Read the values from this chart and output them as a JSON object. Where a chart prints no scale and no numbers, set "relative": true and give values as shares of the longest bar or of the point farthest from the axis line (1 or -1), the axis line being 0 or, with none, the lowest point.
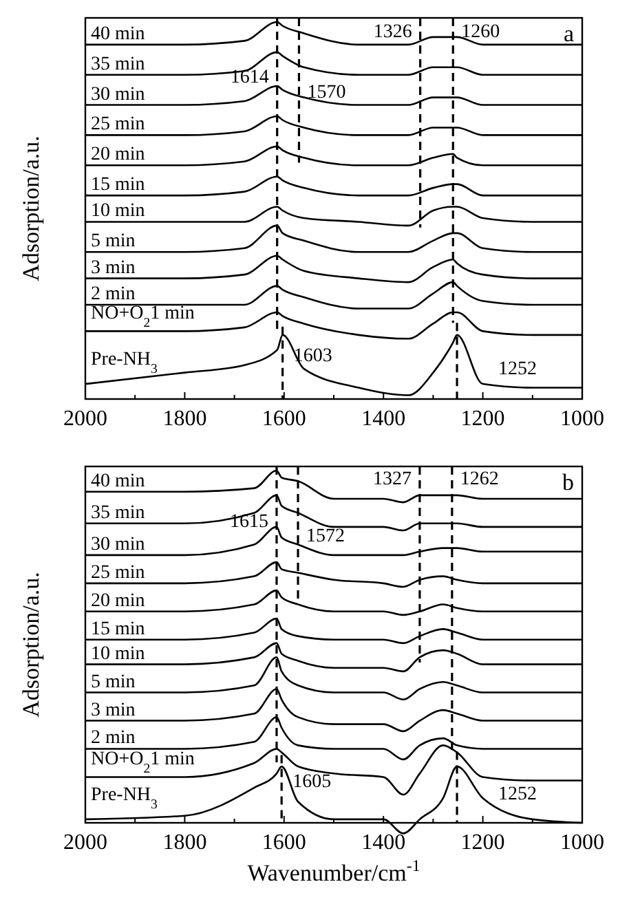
{
  "chart_data": [
    {
      "type": "line",
      "relative": true,
      "ylabel": "Adsorption/a.u.",
      "annotations": [
        "a"
      ],
      "legend": false,
      "grid": false,
      "line_style": "solid",
      "marker": "none",
      "x": [
        2000,
        1800,
        1680,
        1614,
        1603,
        1560,
        1450,
        1350,
        1300,
        1260,
        1252,
        1200,
        1100,
        1000
      ],
      "xlim": [
        2000,
        1000
      ],
      "xticks": [
        2000,
        {
          "value": 1900,
          "label": null
        },
        1800,
        {
          "value": 1700,
          "label": null
        },
        1600,
        {
          "value": 1500,
          "label": null
        },
        1400,
        {
          "value": 1300,
          "label": null
        },
        1200,
        {
          "value": 1100,
          "label": null
        },
        1000
      ],
      "ref_lines": [
        {
          "axis": "x",
          "value": 1614,
          "label": "1614",
          "line_style": "dashed"
        },
        {
          "axis": "x",
          "value": 1570,
          "label": "1570",
          "line_style": "dashed"
        },
        {
          "axis": "x",
          "value": 1326,
          "label": "1326",
          "line_style": "dashed"
        },
        {
          "axis": "x",
          "value": 1260,
          "label": "1260",
          "line_style": "dashed"
        },
        {
          "axis": "x",
          "value": 1603,
          "label": "1603",
          "line_style": "dashed"
        },
        {
          "axis": "x",
          "value": 1252,
          "label": "1252",
          "line_style": "dashed"
        }
      ],
      "series": [
        {
          "name": "40 min",
          "color": "#000000",
          "values": [
            0.94,
            0.94,
            0.95,
            1.0,
            0.99,
            0.97,
            0.94,
            0.94,
            0.96,
            0.96,
            0.96,
            0.94,
            0.94,
            0.94
          ]
        },
        {
          "name": "35 min",
          "color": "#000000",
          "values": [
            0.86,
            0.86,
            0.87,
            0.92,
            0.91,
            0.88,
            0.86,
            0.86,
            0.88,
            0.88,
            0.88,
            0.86,
            0.86,
            0.86
          ]
        },
        {
          "name": "30 min",
          "color": "#000000",
          "values": [
            0.78,
            0.78,
            0.79,
            0.83,
            0.82,
            0.8,
            0.78,
            0.78,
            0.8,
            0.8,
            0.8,
            0.78,
            0.78,
            0.78
          ]
        },
        {
          "name": "25 min",
          "color": "#000000",
          "values": [
            0.7,
            0.7,
            0.71,
            0.75,
            0.74,
            0.72,
            0.7,
            0.7,
            0.72,
            0.72,
            0.72,
            0.7,
            0.7,
            0.7
          ]
        },
        {
          "name": "20 min",
          "color": "#000000",
          "values": [
            0.62,
            0.62,
            0.63,
            0.67,
            0.66,
            0.64,
            0.62,
            0.62,
            0.64,
            0.65,
            0.64,
            0.62,
            0.62,
            0.62
          ]
        },
        {
          "name": "15 min",
          "color": "#000000",
          "values": [
            0.54,
            0.54,
            0.55,
            0.59,
            0.58,
            0.56,
            0.54,
            0.54,
            0.56,
            0.57,
            0.57,
            0.54,
            0.54,
            0.54
          ]
        },
        {
          "name": "10 min",
          "color": "#000000",
          "values": [
            0.47,
            0.47,
            0.47,
            0.51,
            0.5,
            0.48,
            0.47,
            0.46,
            0.5,
            0.51,
            0.51,
            0.48,
            0.47,
            0.47
          ]
        },
        {
          "name": "5 min",
          "color": "#000000",
          "values": [
            0.39,
            0.39,
            0.4,
            0.46,
            0.44,
            0.42,
            0.39,
            0.39,
            0.42,
            0.44,
            0.44,
            0.4,
            0.39,
            0.39
          ]
        },
        {
          "name": "3 min",
          "color": "#000000",
          "values": [
            0.32,
            0.32,
            0.33,
            0.38,
            0.37,
            0.34,
            0.32,
            0.31,
            0.35,
            0.37,
            0.36,
            0.33,
            0.32,
            0.32
          ]
        },
        {
          "name": "2 min",
          "color": "#000000",
          "values": [
            0.25,
            0.25,
            0.25,
            0.3,
            0.29,
            0.27,
            0.24,
            0.24,
            0.28,
            0.31,
            0.3,
            0.26,
            0.25,
            0.25
          ]
        },
        {
          "name": "NO+O$_{2}$1 min",
          "color": "#000000",
          "values": [
            0.18,
            0.18,
            0.19,
            0.23,
            0.22,
            0.2,
            0.17,
            0.16,
            0.2,
            0.23,
            0.23,
            0.18,
            0.17,
            0.17
          ]
        },
        {
          "name": "Pre-NH$_{3}$",
          "color": "#000000",
          "values": [
            0.04,
            0.07,
            0.09,
            0.13,
            0.17,
            0.08,
            0.03,
            0.01,
            0.07,
            0.15,
            0.17,
            0.04,
            0.03,
            0.03
          ]
        }
      ]
    },
    {
      "type": "line",
      "relative": true,
      "ylabel": "Adsorption/a.u.",
      "xlabel": "Wavenumber/cm$^{-1}$",
      "annotations": [
        "b"
      ],
      "legend": false,
      "grid": false,
      "line_style": "solid",
      "marker": "none",
      "x": [
        2000,
        1800,
        1660,
        1615,
        1605,
        1572,
        1500,
        1400,
        1360,
        1327,
        1280,
        1252,
        1200,
        1100,
        1000
      ],
      "xlim": [
        2000,
        1000
      ],
      "xticks": [
        2000,
        {
          "value": 1900,
          "label": null
        },
        1800,
        {
          "value": 1700,
          "label": null
        },
        1600,
        {
          "value": 1500,
          "label": null
        },
        1400,
        {
          "value": 1300,
          "label": null
        },
        1200,
        {
          "value": 1100,
          "label": null
        },
        1000
      ],
      "ref_lines": [
        {
          "axis": "x",
          "value": 1615,
          "label": "1615",
          "line_style": "dashed"
        },
        {
          "axis": "x",
          "value": 1572,
          "label": "1572",
          "line_style": "dashed"
        },
        {
          "axis": "x",
          "value": 1327,
          "label": "1327",
          "line_style": "dashed"
        },
        {
          "axis": "x",
          "value": 1262,
          "label": "1262",
          "line_style": "dashed"
        },
        {
          "axis": "x",
          "value": 1605,
          "label": "1605",
          "line_style": "dashed"
        },
        {
          "axis": "x",
          "value": 1252,
          "label": "1252",
          "line_style": "dashed"
        }
      ],
      "series": [
        {
          "name": "40 min",
          "color": "#000000",
          "values": [
            0.94,
            0.94,
            0.95,
            1.0,
            0.98,
            0.97,
            0.92,
            0.92,
            0.91,
            0.93,
            0.93,
            0.93,
            0.92,
            0.92,
            0.92
          ]
        },
        {
          "name": "35 min",
          "color": "#000000",
          "values": [
            0.85,
            0.85,
            0.88,
            0.93,
            0.9,
            0.88,
            0.84,
            0.84,
            0.83,
            0.85,
            0.85,
            0.85,
            0.84,
            0.84,
            0.84
          ]
        },
        {
          "name": "30 min",
          "color": "#000000",
          "values": [
            0.76,
            0.76,
            0.79,
            0.84,
            0.81,
            0.79,
            0.76,
            0.76,
            0.76,
            0.77,
            0.78,
            0.78,
            0.77,
            0.77,
            0.77
          ]
        },
        {
          "name": "25 min",
          "color": "#000000",
          "values": [
            0.68,
            0.68,
            0.7,
            0.74,
            0.72,
            0.71,
            0.69,
            0.68,
            0.67,
            0.69,
            0.7,
            0.69,
            0.68,
            0.68,
            0.68
          ]
        },
        {
          "name": "20 min",
          "color": "#000000",
          "values": [
            0.6,
            0.6,
            0.62,
            0.66,
            0.64,
            0.62,
            0.6,
            0.6,
            0.59,
            0.6,
            0.62,
            0.61,
            0.6,
            0.6,
            0.6
          ]
        },
        {
          "name": "15 min",
          "color": "#000000",
          "values": [
            0.52,
            0.52,
            0.54,
            0.58,
            0.55,
            0.53,
            0.52,
            0.52,
            0.51,
            0.53,
            0.55,
            0.54,
            0.52,
            0.52,
            0.52
          ]
        },
        {
          "name": "10 min",
          "color": "#000000",
          "values": [
            0.45,
            0.45,
            0.47,
            0.51,
            0.48,
            0.46,
            0.44,
            0.44,
            0.43,
            0.47,
            0.49,
            0.48,
            0.45,
            0.45,
            0.45
          ]
        },
        {
          "name": "5 min",
          "color": "#000000",
          "values": [
            0.37,
            0.37,
            0.39,
            0.47,
            0.43,
            0.39,
            0.37,
            0.37,
            0.35,
            0.38,
            0.4,
            0.39,
            0.37,
            0.37,
            0.37
          ]
        },
        {
          "name": "3 min",
          "color": "#000000",
          "values": [
            0.29,
            0.29,
            0.31,
            0.38,
            0.35,
            0.3,
            0.28,
            0.28,
            0.26,
            0.29,
            0.32,
            0.31,
            0.29,
            0.29,
            0.29
          ]
        },
        {
          "name": "2 min",
          "color": "#000000",
          "values": [
            0.21,
            0.21,
            0.23,
            0.3,
            0.27,
            0.22,
            0.21,
            0.21,
            0.18,
            0.22,
            0.24,
            0.22,
            0.21,
            0.21,
            0.21
          ]
        },
        {
          "name": "NO+O$_{2}$1 min",
          "color": "#000000",
          "values": [
            0.13,
            0.13,
            0.17,
            0.21,
            0.2,
            0.16,
            0.14,
            0.13,
            0.08,
            0.14,
            0.22,
            0.2,
            0.13,
            0.12,
            0.12
          ]
        },
        {
          "name": "Pre-NH$_{3}$",
          "color": "#000000",
          "values": [
            0.01,
            0.02,
            0.1,
            0.14,
            0.16,
            0.06,
            0.01,
            0.01,
            -0.03,
            0.01,
            0.07,
            0.16,
            0.07,
            0.01,
            0.0
          ]
        }
      ]
    }
  ]
}
